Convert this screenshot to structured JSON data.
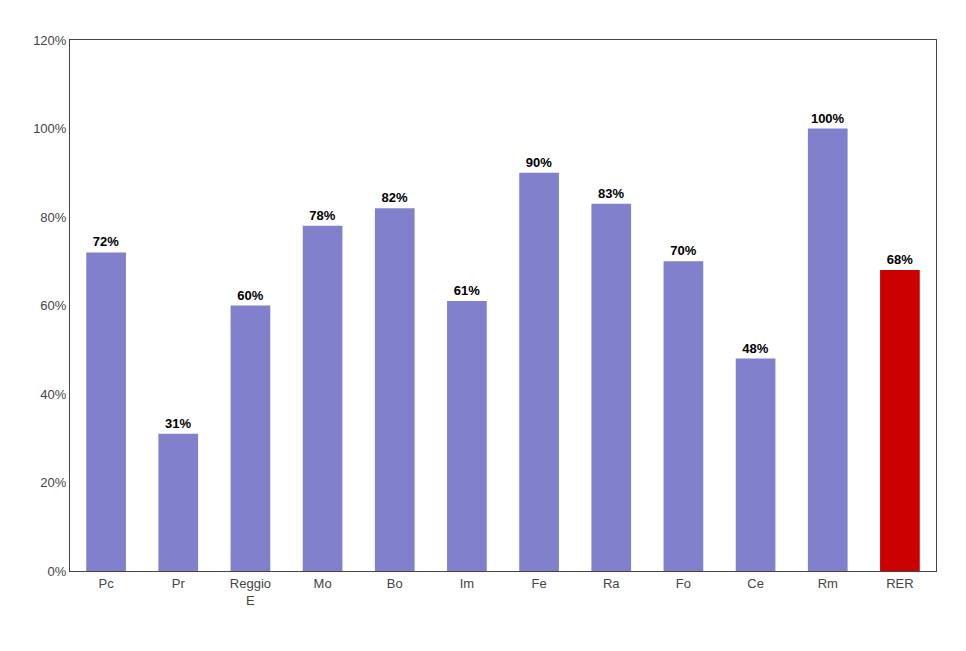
{
  "chart_data": {
    "type": "bar",
    "categories": [
      "Pc",
      "Pr",
      "Reggio\nE",
      "Mo",
      "Bo",
      "Im",
      "Fe",
      "Ra",
      "Fo",
      "Ce",
      "Rm",
      "RER"
    ],
    "values": [
      72,
      31,
      60,
      78,
      82,
      61,
      90,
      83,
      70,
      48,
      100,
      68
    ],
    "value_labels": [
      "72%",
      "31%",
      "60%",
      "78%",
      "82%",
      "61%",
      "90%",
      "83%",
      "70%",
      "48%",
      "100%",
      "68%"
    ],
    "data_labels": true,
    "colors": [
      "#8080cc",
      "#8080cc",
      "#8080cc",
      "#8080cc",
      "#8080cc",
      "#8080cc",
      "#8080cc",
      "#8080cc",
      "#8080cc",
      "#8080cc",
      "#8080cc",
      "#cc0000"
    ],
    "ylim": [
      0,
      120
    ],
    "yticks": [
      {
        "value": 0,
        "label": "0%"
      },
      {
        "value": 20,
        "label": "20%"
      },
      {
        "value": 40,
        "label": "40%"
      },
      {
        "value": 60,
        "label": "60%"
      },
      {
        "value": 80,
        "label": "80%"
      },
      {
        "value": 100,
        "label": "100%"
      },
      {
        "value": 120,
        "label": "120%"
      }
    ],
    "grid": false
  }
}
